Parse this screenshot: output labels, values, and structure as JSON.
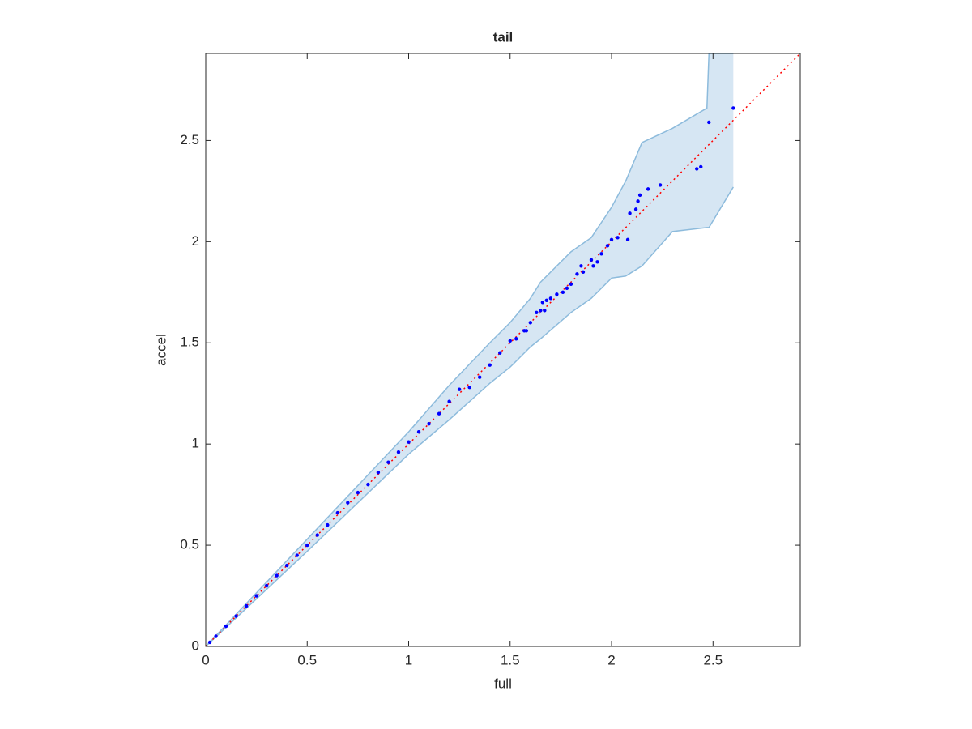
{
  "chart_data": {
    "type": "scatter",
    "title": "tail",
    "xlabel": "full",
    "ylabel": "accel",
    "xlim": [
      0,
      2.93
    ],
    "ylim": [
      0,
      2.93
    ],
    "xticks": [
      0,
      0.5,
      1,
      1.5,
      2,
      2.5
    ],
    "yticks": [
      0,
      0.5,
      1,
      1.5,
      2,
      2.5
    ],
    "band": {
      "color": "#d6e6f3",
      "edge_color": "#8dbbdc",
      "x": [
        0,
        0.5,
        1.0,
        1.2,
        1.4,
        1.5,
        1.6,
        1.65,
        1.8,
        1.9,
        2.0,
        2.07,
        2.15,
        2.3,
        2.47,
        2.48,
        2.6
      ],
      "upper": [
        0,
        0.53,
        1.06,
        1.29,
        1.5,
        1.6,
        1.72,
        1.8,
        1.95,
        2.02,
        2.17,
        2.3,
        2.49,
        2.56,
        2.66,
        2.93,
        2.93
      ],
      "lower": [
        0,
        0.47,
        0.95,
        1.12,
        1.3,
        1.38,
        1.48,
        1.52,
        1.65,
        1.72,
        1.82,
        1.83,
        1.88,
        2.05,
        2.07,
        2.07,
        2.27
      ]
    },
    "reference_line": {
      "color": "#ff0000",
      "x": [
        0,
        2.93
      ],
      "y": [
        0,
        2.93
      ]
    },
    "points": {
      "color": "#0000ff",
      "x": [
        0.02,
        0.05,
        0.1,
        0.15,
        0.2,
        0.25,
        0.3,
        0.35,
        0.4,
        0.45,
        0.5,
        0.55,
        0.6,
        0.65,
        0.7,
        0.75,
        0.8,
        0.85,
        0.9,
        0.95,
        1.0,
        1.05,
        1.1,
        1.15,
        1.2,
        1.25,
        1.3,
        1.35,
        1.4,
        1.45,
        1.5,
        1.53,
        1.57,
        1.58,
        1.6,
        1.63,
        1.65,
        1.66,
        1.67,
        1.68,
        1.7,
        1.73,
        1.76,
        1.78,
        1.8,
        1.83,
        1.85,
        1.86,
        1.9,
        1.91,
        1.93,
        1.95,
        1.98,
        2.0,
        2.03,
        2.08,
        2.09,
        2.12,
        2.13,
        2.14,
        2.18,
        2.24,
        2.42,
        2.44,
        2.48,
        2.6
      ],
      "y": [
        0.02,
        0.05,
        0.1,
        0.15,
        0.2,
        0.25,
        0.3,
        0.35,
        0.4,
        0.45,
        0.5,
        0.55,
        0.6,
        0.66,
        0.71,
        0.76,
        0.8,
        0.86,
        0.91,
        0.96,
        1.01,
        1.06,
        1.1,
        1.15,
        1.21,
        1.27,
        1.28,
        1.33,
        1.39,
        1.45,
        1.51,
        1.52,
        1.56,
        1.56,
        1.6,
        1.65,
        1.66,
        1.7,
        1.66,
        1.71,
        1.72,
        1.74,
        1.75,
        1.77,
        1.79,
        1.84,
        1.88,
        1.85,
        1.91,
        1.88,
        1.9,
        1.94,
        1.98,
        2.01,
        2.02,
        2.01,
        2.14,
        2.16,
        2.2,
        2.23,
        2.26,
        2.28,
        2.36,
        2.37,
        2.59,
        2.66
      ]
    }
  }
}
